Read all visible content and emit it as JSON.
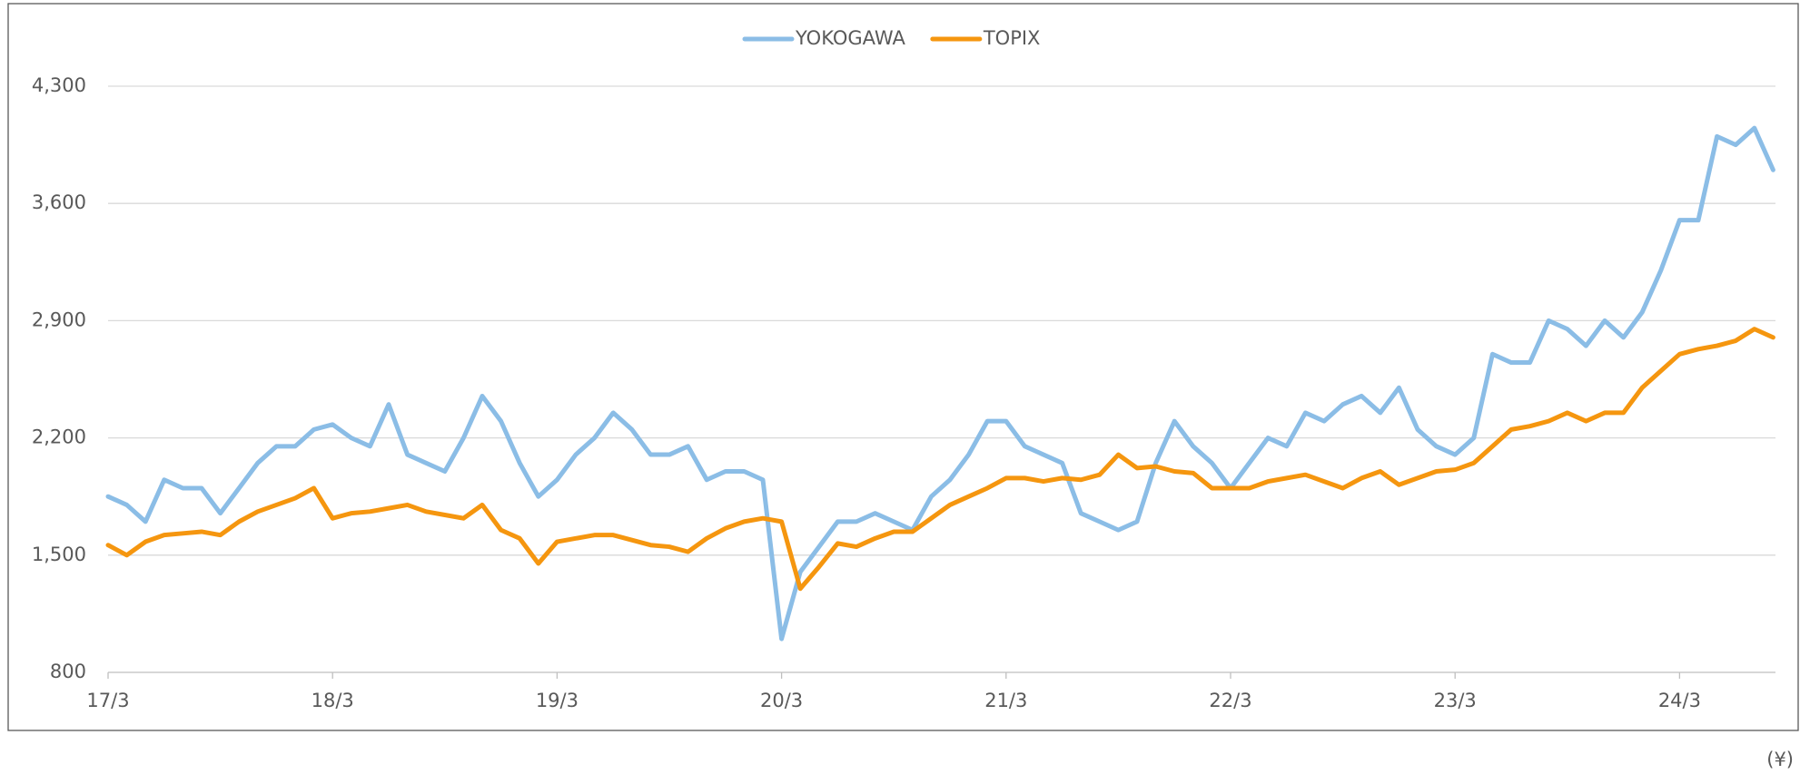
{
  "chart_data": {
    "type": "line",
    "categories": [
      "17/3",
      null,
      null,
      null,
      null,
      null,
      null,
      null,
      null,
      null,
      null,
      null,
      "18/3",
      null,
      null,
      null,
      null,
      null,
      null,
      null,
      null,
      null,
      null,
      null,
      "19/3",
      null,
      null,
      null,
      null,
      null,
      null,
      null,
      null,
      null,
      null,
      null,
      "20/3",
      null,
      null,
      null,
      null,
      null,
      null,
      null,
      null,
      null,
      null,
      null,
      "21/3",
      null,
      null,
      null,
      null,
      null,
      null,
      null,
      null,
      null,
      null,
      null,
      "22/3",
      null,
      null,
      null,
      null,
      null,
      null,
      null,
      null,
      null,
      null,
      null,
      "23/3",
      null,
      null,
      null,
      null,
      null,
      null,
      null,
      null,
      null,
      null,
      null,
      "24/3",
      null,
      null,
      null,
      null,
      null
    ],
    "series": [
      {
        "name": "YOKOGAWA",
        "color": "#8bbde6",
        "values": [
          1850,
          1800,
          1700,
          1950,
          1900,
          1900,
          1750,
          1900,
          2050,
          2150,
          2150,
          2250,
          2280,
          2200,
          2150,
          2400,
          2100,
          2050,
          2000,
          2200,
          2450,
          2300,
          2050,
          1850,
          1950,
          2100,
          2200,
          2350,
          2250,
          2100,
          2100,
          2150,
          1950,
          2000,
          2000,
          1950,
          1000,
          1400,
          1550,
          1700,
          1700,
          1750,
          1700,
          1650,
          1850,
          1950,
          2100,
          2300,
          2300,
          2150,
          2100,
          2050,
          1750,
          1700,
          1650,
          1700,
          2050,
          2300,
          2150,
          2050,
          1900,
          2050,
          2200,
          2150,
          2350,
          2300,
          2400,
          2450,
          2350,
          2500,
          2250,
          2150,
          2100,
          2200,
          2700,
          2650,
          2650,
          2900,
          2850,
          2750,
          2900,
          2800,
          2950,
          3200,
          3500,
          3500,
          4000,
          3950,
          4050,
          3800
        ]
      },
      {
        "name": "TOPIX",
        "color": "#f5960f",
        "values": [
          1560,
          1500,
          1580,
          1620,
          1630,
          1640,
          1620,
          1700,
          1760,
          1800,
          1840,
          1900,
          1720,
          1750,
          1760,
          1780,
          1800,
          1760,
          1740,
          1720,
          1800,
          1650,
          1600,
          1450,
          1580,
          1600,
          1620,
          1620,
          1590,
          1560,
          1550,
          1520,
          1600,
          1660,
          1700,
          1720,
          1700,
          1300,
          1430,
          1570,
          1550,
          1600,
          1640,
          1640,
          1720,
          1800,
          1850,
          1900,
          1960,
          1960,
          1940,
          1960,
          1950,
          1980,
          2100,
          2020,
          2030,
          2000,
          1990,
          1900,
          1900,
          1900,
          1940,
          1960,
          1980,
          1940,
          1900,
          1960,
          2000,
          1920,
          1960,
          2000,
          2010,
          2050,
          2150,
          2250,
          2270,
          2300,
          2350,
          2300,
          2350,
          2350,
          2500,
          2600,
          2700,
          2730,
          2750,
          2780,
          2850,
          2800
        ]
      }
    ],
    "ylim": [
      800,
      4300
    ],
    "yticks": [
      {
        "value": 800,
        "label": "800"
      },
      {
        "value": 1500,
        "label": "1,500"
      },
      {
        "value": 2200,
        "label": "2,200"
      },
      {
        "value": 2900,
        "label": "2,900"
      },
      {
        "value": 3600,
        "label": "3,600"
      },
      {
        "value": 4300,
        "label": "4,300"
      }
    ],
    "grid": true,
    "legend": "top",
    "unit_note": "(¥)"
  }
}
